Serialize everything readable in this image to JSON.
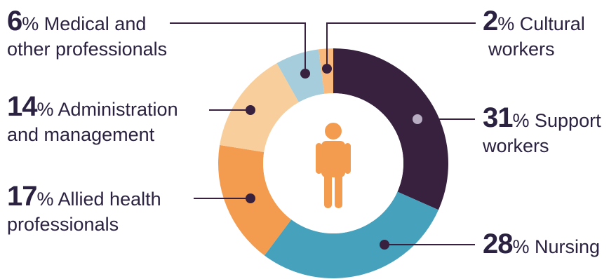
{
  "chart_data": {
    "type": "pie",
    "variant": "donut",
    "unit": "%",
    "segments": [
      {
        "value": 31,
        "name": "Support workers",
        "label_line1": "% Support",
        "label_line2": "workers",
        "color": "#37213f"
      },
      {
        "value": 28,
        "name": "Nursing",
        "label_line1": "% Nursing",
        "label_line2": "",
        "color": "#46a1bd"
      },
      {
        "value": 17,
        "name": "Allied health professionals",
        "label_line1": "% Allied health",
        "label_line2": "professionals",
        "color": "#f39c4f"
      },
      {
        "value": 14,
        "name": "Administration and management",
        "label_line1": "% Administration",
        "label_line2": "and management",
        "color": "#f8cf9c"
      },
      {
        "value": 6,
        "name": "Medical and other professionals",
        "label_line1": "% Medical and",
        "label_line2": "other professionals",
        "color": "#a6cddb"
      },
      {
        "value": 2,
        "name": "Cultural workers",
        "label_line1": "% Cultural",
        "label_line2": "workers",
        "color": "#f9b97c"
      }
    ],
    "center_icon": "person-icon",
    "center_icon_color": "#f39c4f",
    "leader_line_color": "#37213f"
  }
}
